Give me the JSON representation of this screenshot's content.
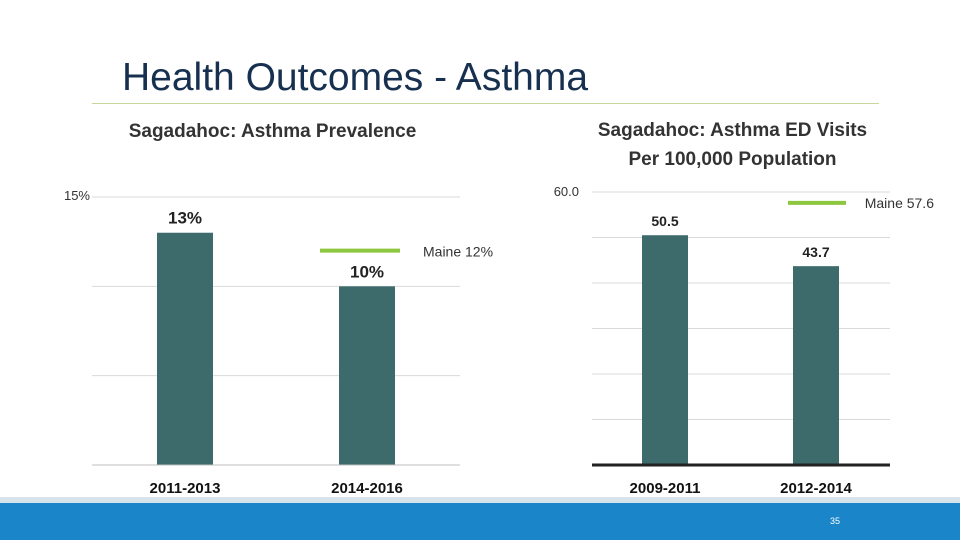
{
  "slide": {
    "title": "Health Outcomes - Asthma",
    "page_number": "35"
  },
  "colors": {
    "bar": "#3d6b6b",
    "benchmark": "#8dc63f",
    "grid": "#d9d9d9",
    "axis": "#bfbfbf",
    "axis_dark": "#222222",
    "footer": "#1a85c8"
  },
  "chart_data": [
    {
      "type": "bar",
      "title": "Sagadahoc: Asthma Prevalence",
      "categories": [
        "2011-2013",
        "2014-2016"
      ],
      "values": [
        13,
        10
      ],
      "value_labels": [
        "13%",
        "10%"
      ],
      "ylim": [
        0,
        15
      ],
      "y_tick_label": "15%",
      "benchmark": {
        "label": "Maine 12%",
        "value": 12,
        "category_index": 1
      },
      "grid": true,
      "xlabel": "",
      "ylabel": ""
    },
    {
      "type": "bar",
      "title": "Sagadahoc: Asthma ED Visits Per 100,000 Population",
      "title_lines": [
        "Sagadahoc: Asthma ED Visits",
        "Per 100,000 Population"
      ],
      "categories": [
        "2009-2011",
        "2012-2014"
      ],
      "values": [
        50.5,
        43.7
      ],
      "value_labels": [
        "50.5",
        "43.7"
      ],
      "ylim": [
        0,
        60
      ],
      "y_tick_label": "60.0",
      "benchmark": {
        "label": "Maine 57.6",
        "value": 57.6,
        "category_index": 1
      },
      "grid": true,
      "xlabel": "",
      "ylabel": ""
    }
  ]
}
